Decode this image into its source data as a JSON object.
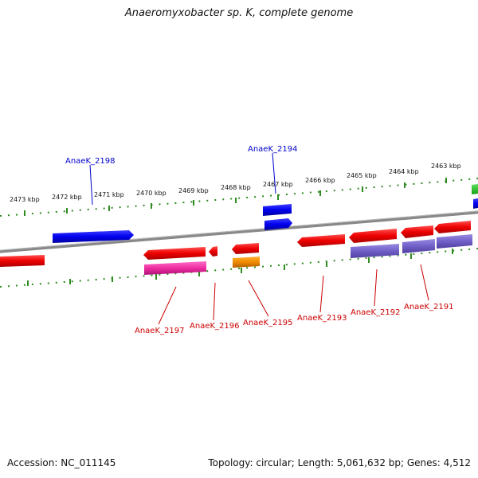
{
  "title": "Anaeromyxobacter sp. K, complete genome",
  "footer": {
    "accession": "Accession: NC_011145",
    "topology": "Topology: circular; Length: 5,061,632 bp; Genes: 4,512"
  },
  "ruler_labels": [
    "2473 kbp",
    "2472 kbp",
    "2471 kbp",
    "2470 kbp",
    "2469 kbp",
    "2468 kbp",
    "2467 kbp",
    "2466 kbp",
    "2465 kbp",
    "2464 kbp",
    "2463 kbp"
  ],
  "gene_labels": [
    {
      "text": "AnaeK_2198",
      "strand": "forward"
    },
    {
      "text": "AnaeK_2194",
      "strand": "forward"
    },
    {
      "text": "AnaeK_2197",
      "strand": "reverse"
    },
    {
      "text": "AnaeK_2196",
      "strand": "reverse"
    },
    {
      "text": "AnaeK_2195",
      "strand": "reverse"
    },
    {
      "text": "AnaeK_2193",
      "strand": "reverse"
    },
    {
      "text": "AnaeK_2192",
      "strand": "reverse"
    },
    {
      "text": "AnaeK_2191",
      "strand": "reverse"
    }
  ],
  "colors": {
    "forward_label": "#0000cc",
    "reverse_label": "#cc0000",
    "ruler": "#2e8b20",
    "backbone": "#888888"
  }
}
